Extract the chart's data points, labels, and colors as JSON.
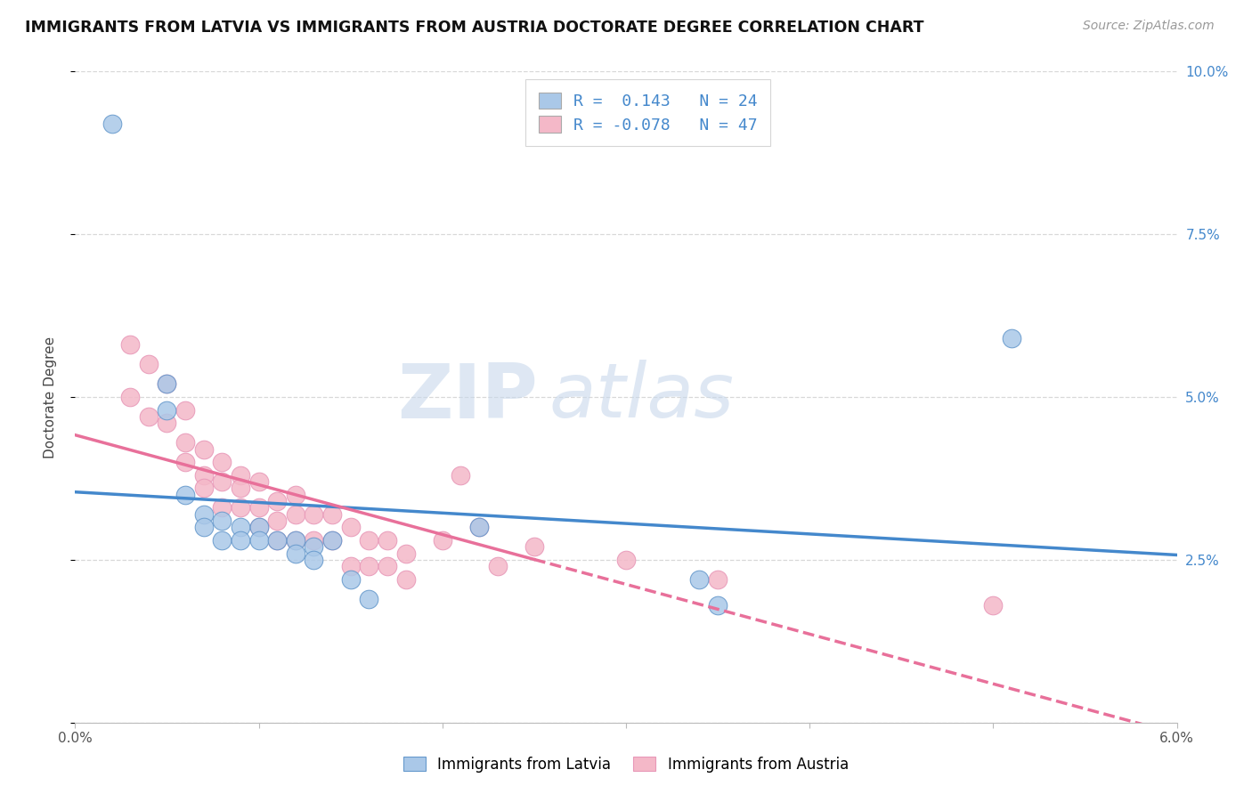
{
  "title": "IMMIGRANTS FROM LATVIA VS IMMIGRANTS FROM AUSTRIA DOCTORATE DEGREE CORRELATION CHART",
  "source_text": "Source: ZipAtlas.com",
  "ylabel": "Doctorate Degree",
  "xlim": [
    0.0,
    0.06
  ],
  "ylim": [
    0.0,
    0.1
  ],
  "xticks": [
    0.0,
    0.01,
    0.02,
    0.03,
    0.04,
    0.05,
    0.06
  ],
  "xticklabels": [
    "0.0%",
    "",
    "",
    "",
    "",
    "",
    "6.0%"
  ],
  "yticks": [
    0.0,
    0.025,
    0.05,
    0.075,
    0.1
  ],
  "yticklabels": [
    "",
    "2.5%",
    "5.0%",
    "7.5%",
    "10.0%"
  ],
  "latvia_color": "#aac8e8",
  "austria_color": "#f4b8c8",
  "latvia_line_color": "#4488cc",
  "austria_line_color": "#e8709a",
  "R_latvia": 0.143,
  "N_latvia": 24,
  "R_austria": -0.078,
  "N_austria": 47,
  "legend_label_latvia": "Immigrants from Latvia",
  "legend_label_austria": "Immigrants from Austria",
  "watermark_zip": "ZIP",
  "watermark_atlas": "atlas",
  "background_color": "#ffffff",
  "grid_color": "#d8d8d8",
  "latvia_scatter": [
    [
      0.002,
      0.092
    ],
    [
      0.005,
      0.052
    ],
    [
      0.005,
      0.048
    ],
    [
      0.006,
      0.035
    ],
    [
      0.007,
      0.032
    ],
    [
      0.007,
      0.03
    ],
    [
      0.008,
      0.031
    ],
    [
      0.008,
      0.028
    ],
    [
      0.009,
      0.03
    ],
    [
      0.009,
      0.028
    ],
    [
      0.01,
      0.03
    ],
    [
      0.01,
      0.028
    ],
    [
      0.011,
      0.028
    ],
    [
      0.012,
      0.028
    ],
    [
      0.012,
      0.026
    ],
    [
      0.013,
      0.027
    ],
    [
      0.013,
      0.025
    ],
    [
      0.014,
      0.028
    ],
    [
      0.015,
      0.022
    ],
    [
      0.016,
      0.019
    ],
    [
      0.022,
      0.03
    ],
    [
      0.034,
      0.022
    ],
    [
      0.035,
      0.018
    ],
    [
      0.051,
      0.059
    ]
  ],
  "austria_scatter": [
    [
      0.003,
      0.058
    ],
    [
      0.003,
      0.05
    ],
    [
      0.004,
      0.055
    ],
    [
      0.004,
      0.047
    ],
    [
      0.005,
      0.052
    ],
    [
      0.005,
      0.046
    ],
    [
      0.006,
      0.048
    ],
    [
      0.006,
      0.043
    ],
    [
      0.006,
      0.04
    ],
    [
      0.007,
      0.042
    ],
    [
      0.007,
      0.038
    ],
    [
      0.007,
      0.036
    ],
    [
      0.008,
      0.04
    ],
    [
      0.008,
      0.037
    ],
    [
      0.008,
      0.033
    ],
    [
      0.009,
      0.038
    ],
    [
      0.009,
      0.036
    ],
    [
      0.009,
      0.033
    ],
    [
      0.01,
      0.037
    ],
    [
      0.01,
      0.033
    ],
    [
      0.01,
      0.03
    ],
    [
      0.011,
      0.034
    ],
    [
      0.011,
      0.031
    ],
    [
      0.011,
      0.028
    ],
    [
      0.012,
      0.035
    ],
    [
      0.012,
      0.032
    ],
    [
      0.012,
      0.028
    ],
    [
      0.013,
      0.032
    ],
    [
      0.013,
      0.028
    ],
    [
      0.014,
      0.032
    ],
    [
      0.014,
      0.028
    ],
    [
      0.015,
      0.03
    ],
    [
      0.015,
      0.024
    ],
    [
      0.016,
      0.028
    ],
    [
      0.016,
      0.024
    ],
    [
      0.017,
      0.028
    ],
    [
      0.017,
      0.024
    ],
    [
      0.018,
      0.026
    ],
    [
      0.018,
      0.022
    ],
    [
      0.02,
      0.028
    ],
    [
      0.021,
      0.038
    ],
    [
      0.022,
      0.03
    ],
    [
      0.023,
      0.024
    ],
    [
      0.025,
      0.027
    ],
    [
      0.03,
      0.025
    ],
    [
      0.035,
      0.022
    ],
    [
      0.05,
      0.018
    ]
  ],
  "title_fontsize": 12.5,
  "axis_label_fontsize": 11,
  "tick_fontsize": 11,
  "legend_fontsize": 13
}
